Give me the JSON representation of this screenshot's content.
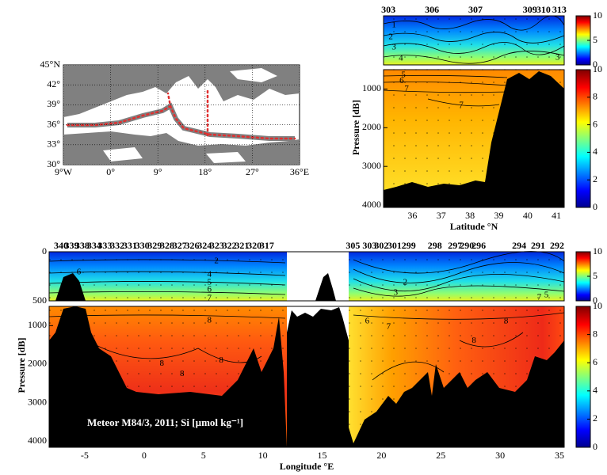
{
  "chart_data": [
    {
      "type": "map",
      "xlim": [
        -9,
        36
      ],
      "ylim": [
        30,
        45
      ],
      "xticks": [
        {
          "value": -9,
          "label": "9°W"
        },
        {
          "value": 0,
          "label": "0°"
        },
        {
          "value": 9,
          "label": "9°"
        },
        {
          "value": 18,
          "label": "18°"
        },
        {
          "value": 27,
          "label": "27°"
        },
        {
          "value": 36,
          "label": "36°E"
        }
      ],
      "yticks": [
        {
          "value": 30,
          "label": "30°"
        },
        {
          "value": 33,
          "label": "33°"
        },
        {
          "value": 36,
          "label": "36°"
        },
        {
          "value": 39,
          "label": "39°"
        },
        {
          "value": 42,
          "label": "42°"
        },
        {
          "value": 45,
          "label": "45°N"
        }
      ],
      "grid": true,
      "track_color": "#e03030"
    },
    {
      "type": "section",
      "xlabel": "Latitude °N",
      "ylabel": "Pressure [dB]",
      "xlim": [
        35,
        41.27
      ],
      "xticks": [
        36,
        37,
        38,
        39,
        40,
        41
      ],
      "top_ylim": [
        0,
        500
      ],
      "ylim": [
        500,
        4060
      ],
      "yticks": [
        1000,
        2000,
        3000,
        4000
      ],
      "stations": {
        "labels": [
          "303",
          "306",
          "307",
          "309",
          "310",
          "313"
        ],
        "x": [
          35.17,
          36.68,
          38.19,
          40.08,
          40.55,
          41.1
        ]
      },
      "colorbars": [
        {
          "lim": [
            0,
            10
          ],
          "ticks": [
            0,
            5,
            10
          ]
        },
        {
          "lim": [
            0,
            10
          ],
          "ticks": [
            0,
            2,
            4,
            6,
            8,
            10
          ]
        }
      ],
      "contour_labels": [
        {
          "value": 1,
          "x": 35.36,
          "p": 97
        },
        {
          "value": 2,
          "x": 35.25,
          "p": 218
        },
        {
          "value": 3,
          "x": 35.36,
          "p": 323
        },
        {
          "value": 4,
          "x": 35.6,
          "p": 435
        },
        {
          "value": 3,
          "x": 41.04,
          "p": 427
        },
        {
          "value": 5,
          "x": 35.69,
          "p": 640
        },
        {
          "value": 6,
          "x": 35.63,
          "p": 800
        },
        {
          "value": 7,
          "x": 35.8,
          "p": 1000
        },
        {
          "value": 7,
          "x": 37.7,
          "p": 1420
        }
      ]
    },
    {
      "type": "section",
      "xlabel": "Longitude °E",
      "ylabel": "Pressure [dB]",
      "xlim": [
        -8,
        35.4
      ],
      "xticks": [
        -5,
        0,
        5,
        10,
        15,
        20,
        25,
        30,
        35
      ],
      "top_ylim": [
        0,
        500
      ],
      "top_yticks": [
        0,
        500
      ],
      "ylim": [
        500,
        4160
      ],
      "yticks": [
        1000,
        2000,
        3000,
        4000
      ],
      "stations": {
        "labels": [
          "340",
          "339",
          "338",
          "334",
          "333",
          "332",
          "331",
          "330",
          "329",
          "328",
          "327",
          "326",
          "324",
          "323",
          "322",
          "321",
          "320",
          "317",
          "305",
          "303",
          "302",
          "301",
          "299",
          "298",
          "297",
          "290",
          "296",
          "294",
          "291",
          "292"
        ],
        "x": [
          -7.0,
          -6.1,
          -5.2,
          -4.2,
          -3.3,
          -2.25,
          -1.2,
          -0.15,
          0.9,
          1.95,
          3.0,
          4.05,
          5.1,
          6.15,
          7.2,
          8.25,
          9.3,
          10.35,
          17.6,
          19.0,
          20.0,
          21.1,
          22.3,
          24.5,
          26.2,
          27.2,
          28.2,
          31.6,
          33.2,
          34.8
        ]
      },
      "colorbars": [
        {
          "lim": [
            0,
            10
          ],
          "ticks": [
            0,
            5,
            10
          ]
        },
        {
          "lim": [
            0,
            10
          ],
          "ticks": [
            0,
            2,
            4,
            6,
            8,
            10
          ]
        }
      ],
      "contour_labels": [
        {
          "value": 6,
          "x": -5.5,
          "p": 210
        },
        {
          "value": 2,
          "x": 6.1,
          "p": 97
        },
        {
          "value": 4,
          "x": 5.5,
          "p": 234
        },
        {
          "value": 5,
          "x": 5.5,
          "p": 315
        },
        {
          "value": 6,
          "x": 5.5,
          "p": 387
        },
        {
          "value": 7,
          "x": 5.5,
          "p": 476
        },
        {
          "value": 8,
          "x": 5.5,
          "p": 867
        },
        {
          "value": 8,
          "x": 1.5,
          "p": 1990
        },
        {
          "value": 8,
          "x": 3.2,
          "p": 2255
        },
        {
          "value": 8,
          "x": 6.5,
          "p": 1908
        },
        {
          "value": 6,
          "x": 18.8,
          "p": 888
        },
        {
          "value": 7,
          "x": 20.6,
          "p": 1030
        },
        {
          "value": 2,
          "x": 22,
          "p": 315
        },
        {
          "value": 3,
          "x": 21.2,
          "p": 419
        },
        {
          "value": 8,
          "x": 30.5,
          "p": 888
        },
        {
          "value": 8,
          "x": 27.8,
          "p": 1398
        },
        {
          "value": 5,
          "x": 33.9,
          "p": 444
        },
        {
          "value": 7,
          "x": 33.3,
          "p": 468
        }
      ],
      "annotation": "Meteor M84/3, 2011; Si [µmol kg⁻¹]"
    }
  ]
}
